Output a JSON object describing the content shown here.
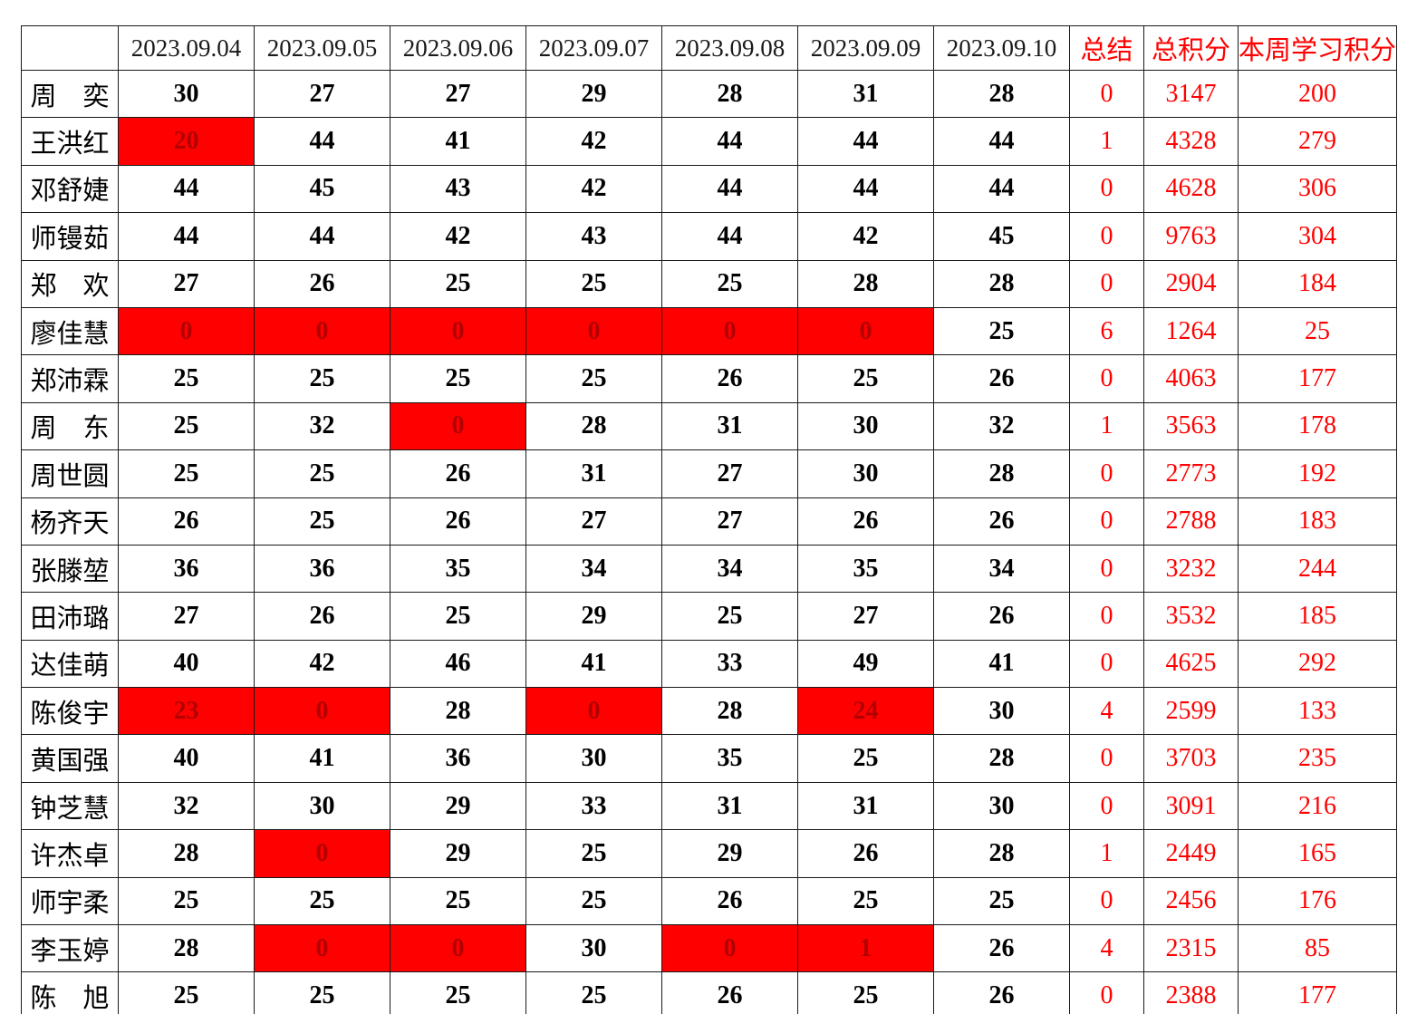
{
  "table": {
    "corner_label": "",
    "columns": [
      "2023.09.04",
      "2023.09.05",
      "2023.09.06",
      "2023.09.07",
      "2023.09.08",
      "2023.09.09",
      "2023.09.10"
    ],
    "summary_header": "总结",
    "total_header": "总积分",
    "week_header": "本周学习积分",
    "rows": [
      {
        "name": "周　奕",
        "days": [
          30,
          27,
          27,
          29,
          28,
          31,
          28
        ],
        "red_days": [],
        "summary": 0,
        "total": 3147,
        "week": 200
      },
      {
        "name": "王洪红",
        "days": [
          20,
          44,
          41,
          42,
          44,
          44,
          44
        ],
        "red_days": [
          0
        ],
        "summary": 1,
        "total": 4328,
        "week": 279
      },
      {
        "name": "邓舒婕",
        "days": [
          44,
          45,
          43,
          42,
          44,
          44,
          44
        ],
        "red_days": [],
        "summary": 0,
        "total": 4628,
        "week": 306
      },
      {
        "name": "师镘茹",
        "days": [
          44,
          44,
          42,
          43,
          44,
          42,
          45
        ],
        "red_days": [],
        "summary": 0,
        "total": 9763,
        "week": 304
      },
      {
        "name": "郑　欢",
        "days": [
          27,
          26,
          25,
          25,
          25,
          28,
          28
        ],
        "red_days": [],
        "summary": 0,
        "total": 2904,
        "week": 184
      },
      {
        "name": "廖佳慧",
        "days": [
          0,
          0,
          0,
          0,
          0,
          0,
          25
        ],
        "red_days": [
          0,
          1,
          2,
          3,
          4,
          5
        ],
        "summary": 6,
        "total": 1264,
        "week": 25
      },
      {
        "name": "郑沛霖",
        "days": [
          25,
          25,
          25,
          25,
          26,
          25,
          26
        ],
        "red_days": [],
        "summary": 0,
        "total": 4063,
        "week": 177
      },
      {
        "name": "周　东",
        "days": [
          25,
          32,
          0,
          28,
          31,
          30,
          32
        ],
        "red_days": [
          2
        ],
        "summary": 1,
        "total": 3563,
        "week": 178
      },
      {
        "name": "周世圆",
        "days": [
          25,
          25,
          26,
          31,
          27,
          30,
          28
        ],
        "red_days": [],
        "summary": 0,
        "total": 2773,
        "week": 192
      },
      {
        "name": "杨齐天",
        "days": [
          26,
          25,
          26,
          27,
          27,
          26,
          26
        ],
        "red_days": [],
        "summary": 0,
        "total": 2788,
        "week": 183
      },
      {
        "name": "张滕堃",
        "days": [
          36,
          36,
          35,
          34,
          34,
          35,
          34
        ],
        "red_days": [],
        "summary": 0,
        "total": 3232,
        "week": 244
      },
      {
        "name": "田沛璐",
        "days": [
          27,
          26,
          25,
          29,
          25,
          27,
          26
        ],
        "red_days": [],
        "summary": 0,
        "total": 3532,
        "week": 185
      },
      {
        "name": "达佳萌",
        "days": [
          40,
          42,
          46,
          41,
          33,
          49,
          41
        ],
        "red_days": [],
        "summary": 0,
        "total": 4625,
        "week": 292
      },
      {
        "name": "陈俊宇",
        "days": [
          23,
          0,
          28,
          0,
          28,
          24,
          30
        ],
        "red_days": [
          0,
          1,
          3,
          5
        ],
        "summary": 4,
        "total": 2599,
        "week": 133
      },
      {
        "name": "黄国强",
        "days": [
          40,
          41,
          36,
          30,
          35,
          25,
          28
        ],
        "red_days": [],
        "summary": 0,
        "total": 3703,
        "week": 235
      },
      {
        "name": "钟芝慧",
        "days": [
          32,
          30,
          29,
          33,
          31,
          31,
          30
        ],
        "red_days": [],
        "summary": 0,
        "total": 3091,
        "week": 216
      },
      {
        "name": "许杰卓",
        "days": [
          28,
          0,
          29,
          25,
          29,
          26,
          28
        ],
        "red_days": [
          1
        ],
        "summary": 1,
        "total": 2449,
        "week": 165
      },
      {
        "name": "师宇柔",
        "days": [
          25,
          25,
          25,
          25,
          26,
          25,
          25
        ],
        "red_days": [],
        "summary": 0,
        "total": 2456,
        "week": 176
      },
      {
        "name": "李玉婷",
        "days": [
          28,
          0,
          0,
          30,
          0,
          1,
          26
        ],
        "red_days": [
          1,
          2,
          4,
          5
        ],
        "summary": 4,
        "total": 2315,
        "week": 85
      },
      {
        "name": "陈　旭",
        "days": [
          25,
          25,
          25,
          25,
          26,
          25,
          26
        ],
        "red_days": [],
        "summary": 0,
        "total": 2388,
        "week": 177
      }
    ]
  },
  "colors": {
    "highlight_bg": "#ff0000",
    "highlight_text": "#b20000",
    "accent_text": "#ff0000",
    "body_text": "#000000"
  }
}
